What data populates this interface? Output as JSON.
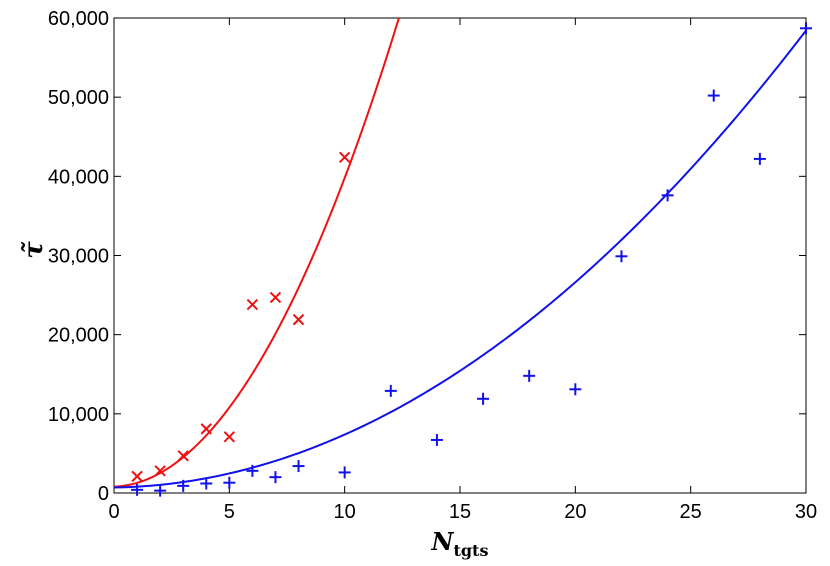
{
  "chart_data": {
    "type": "scatter",
    "xlabel": "N",
    "xlabel_subscript": "tgts",
    "ylabel": "τ̃",
    "xlim": [
      0,
      30
    ],
    "ylim": [
      0,
      60000
    ],
    "x_ticks": [
      0,
      5,
      10,
      15,
      20,
      25,
      30
    ],
    "x_tick_labels": [
      "0",
      "5",
      "10",
      "15",
      "20",
      "25",
      "30"
    ],
    "y_ticks": [
      0,
      10000,
      20000,
      30000,
      40000,
      50000,
      60000
    ],
    "y_tick_labels": [
      "0",
      "10,000",
      "20,000",
      "30,000",
      "40,000",
      "50,000",
      "60,000"
    ],
    "grid": false,
    "series": [
      {
        "color": "#ee1111",
        "marker": "x",
        "points": [
          [
            1,
            2100
          ],
          [
            2,
            2800
          ],
          [
            3,
            4700
          ],
          [
            4,
            8100
          ],
          [
            5,
            7100
          ],
          [
            6,
            23800
          ],
          [
            7,
            24700
          ],
          [
            8,
            21900
          ],
          [
            10,
            42400
          ]
        ],
        "fit": {
          "x_range": [
            0,
            12.4
          ],
          "coefficients": [
            800,
            100,
            380
          ]
        }
      },
      {
        "color": "#1111ee",
        "marker": "+",
        "points": [
          [
            1,
            400
          ],
          [
            2,
            300
          ],
          [
            3,
            900
          ],
          [
            4,
            1200
          ],
          [
            5,
            1300
          ],
          [
            6,
            2800
          ],
          [
            7,
            2000
          ],
          [
            8,
            3400
          ],
          [
            10,
            2600
          ],
          [
            12,
            12900
          ],
          [
            14,
            6700
          ],
          [
            16,
            11900
          ],
          [
            18,
            14800
          ],
          [
            20,
            13100
          ],
          [
            22,
            29900
          ],
          [
            24,
            37600
          ],
          [
            26,
            50200
          ],
          [
            28,
            42200
          ],
          [
            30,
            58700
          ]
        ],
        "fit": {
          "x_range": [
            0,
            30
          ],
          "coefficients": [
            700,
            40,
            62.8
          ]
        }
      }
    ]
  }
}
